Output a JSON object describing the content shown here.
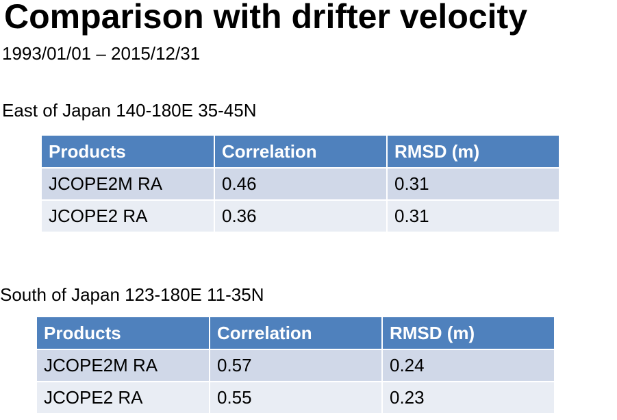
{
  "title": "Comparison with drifter velocity",
  "date_range": "1993/01/01 – 2015/12/31",
  "sections": [
    {
      "region": "East of Japan 140-180E 35-45N",
      "headers": [
        "Products",
        "Correlation",
        "RMSD (m)"
      ],
      "rows": [
        [
          "JCOPE2M RA",
          "0.46",
          "0.31"
        ],
        [
          "JCOPE2 RA",
          "0.36",
          "0.31"
        ]
      ]
    },
    {
      "region": "South of Japan 123-180E 11-35N",
      "headers": [
        "Products",
        "Correlation",
        "RMSD (m)"
      ],
      "rows": [
        [
          "JCOPE2M RA",
          "0.57",
          "0.24"
        ],
        [
          "JCOPE2 RA",
          "0.55",
          "0.23"
        ]
      ]
    }
  ]
}
